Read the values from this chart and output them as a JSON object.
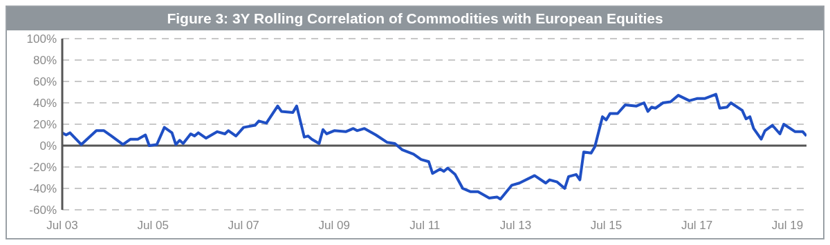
{
  "chart_data": {
    "type": "line",
    "title": "Figure 3: 3Y Rolling Correlation of Commodities with European Equities",
    "x": [
      "2003-07",
      "2003-08",
      "2003-09",
      "2003-12",
      "2004-04",
      "2004-06",
      "2004-08",
      "2004-11",
      "2005-01",
      "2005-03",
      "2005-05",
      "2005-06",
      "2005-08",
      "2005-10",
      "2005-12",
      "2006-01",
      "2006-02",
      "2006-03",
      "2006-05",
      "2006-06",
      "2006-07",
      "2006-09",
      "2006-12",
      "2007-02",
      "2007-03",
      "2007-05",
      "2007-07",
      "2007-10",
      "2007-11",
      "2008-01",
      "2008-04",
      "2008-05",
      "2008-08",
      "2008-09",
      "2008-11",
      "2008-12",
      "2009-01",
      "2009-03",
      "2009-04",
      "2009-05",
      "2009-07",
      "2009-10",
      "2009-12",
      "2010-01",
      "2010-03",
      "2010-06",
      "2010-09",
      "2010-11",
      "2011-01",
      "2011-04",
      "2011-06",
      "2011-08",
      "2011-09",
      "2011-11",
      "2011-12",
      "2012-01",
      "2012-03",
      "2012-05",
      "2012-07",
      "2012-09",
      "2012-12",
      "2013-02",
      "2013-03",
      "2013-06",
      "2013-08",
      "2013-12",
      "2014-03",
      "2014-04",
      "2014-06",
      "2014-08",
      "2014-09",
      "2014-11",
      "2014-12",
      "2015-01",
      "2015-03",
      "2015-04",
      "2015-06",
      "2015-07",
      "2015-08",
      "2015-10",
      "2015-12",
      "2016-03",
      "2016-05",
      "2016-06",
      "2016-07",
      "2016-08",
      "2016-10",
      "2016-12",
      "2017-02",
      "2017-05",
      "2017-07",
      "2017-09",
      "2017-12",
      "2018-01",
      "2018-03",
      "2018-04",
      "2018-07",
      "2018-08",
      "2018-09",
      "2018-10",
      "2018-12",
      "2019-01",
      "2019-03",
      "2019-05",
      "2019-06",
      "2019-09",
      "2019-11",
      "2019-12"
    ],
    "series": [
      {
        "color": "#1f4fc4",
        "values": [
          12,
          10,
          12,
          1,
          14,
          14,
          9,
          1,
          6,
          6,
          10,
          0,
          1,
          17,
          12,
          1,
          5,
          2,
          11,
          9,
          12,
          7,
          13,
          11,
          14,
          9,
          17,
          19,
          23,
          21,
          37,
          32,
          31,
          37,
          8,
          9,
          6,
          2,
          15,
          11,
          14,
          13,
          16,
          14,
          16,
          10,
          3,
          2,
          -4,
          -8,
          -13,
          -15,
          -26,
          -22,
          -24,
          -21,
          -27,
          -40,
          -43,
          -43,
          -49,
          -48,
          -50,
          -37,
          -35,
          -28,
          -35,
          -32,
          -34,
          -40,
          -29,
          -27,
          -32,
          -6,
          -7,
          -1,
          27,
          24,
          30,
          30,
          38,
          37,
          40,
          32,
          36,
          35,
          40,
          41,
          47,
          42,
          44,
          44,
          48,
          35,
          36,
          40,
          33,
          25,
          27,
          16,
          6,
          14,
          19,
          11,
          20,
          13,
          13,
          9
        ]
      }
    ],
    "xlim": [
      "2003-07",
      "2019-12"
    ],
    "xticks": [
      {
        "value": "2003-07",
        "label": "Jul 03"
      },
      {
        "value": "2005-07",
        "label": "Jul 05"
      },
      {
        "value": "2007-07",
        "label": "Jul 07"
      },
      {
        "value": "2009-07",
        "label": "Jul 09"
      },
      {
        "value": "2011-07",
        "label": "Jul 11"
      },
      {
        "value": "2013-07",
        "label": "Jul 13"
      },
      {
        "value": "2015-07",
        "label": "Jul 15"
      },
      {
        "value": "2017-07",
        "label": "Jul 17"
      },
      {
        "value": "2019-07",
        "label": "Jul 19"
      }
    ],
    "ylim": [
      -60,
      100
    ],
    "yticks": [
      {
        "value": -60,
        "label": "-60%"
      },
      {
        "value": -40,
        "label": "-40%"
      },
      {
        "value": -20,
        "label": "-20%"
      },
      {
        "value": 0,
        "label": "0%"
      },
      {
        "value": 20,
        "label": "20%"
      },
      {
        "value": 40,
        "label": "40%"
      },
      {
        "value": 60,
        "label": "60%"
      },
      {
        "value": 80,
        "label": "80%"
      },
      {
        "value": 100,
        "label": "100%"
      }
    ],
    "grid": "y",
    "legend": false,
    "marker": "none",
    "line_style": "solid",
    "ref_lines": [
      {
        "axis": "y",
        "value": 0,
        "color": "#555555"
      }
    ]
  }
}
